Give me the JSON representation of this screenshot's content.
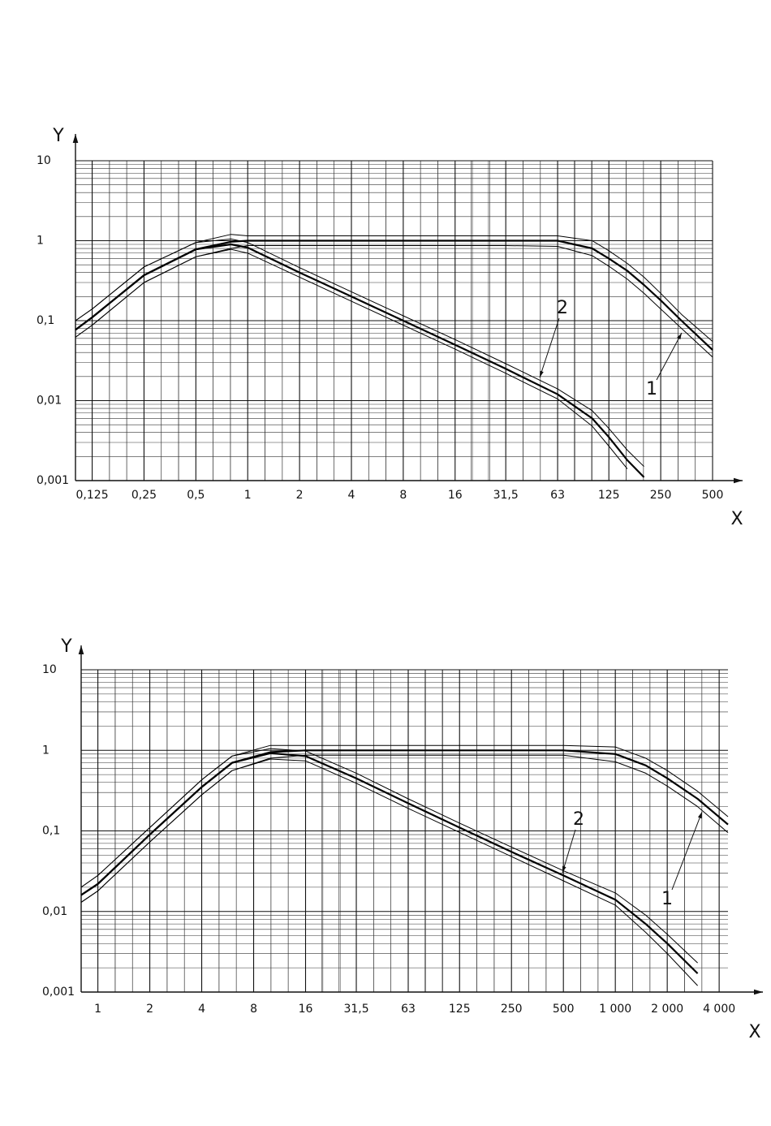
{
  "chart_data": [
    {
      "type": "line",
      "xscale": "log",
      "yscale": "log",
      "grid": true,
      "color": "#000000",
      "xlabel": "X",
      "ylabel": "Y",
      "xlim": [
        0.1,
        500
      ],
      "ylim": [
        0.001,
        10
      ],
      "xticks": [
        {
          "value": 0.125,
          "label": "0,125"
        },
        {
          "value": 0.25,
          "label": "0,25"
        },
        {
          "value": 0.5,
          "label": "0,5"
        },
        1,
        2,
        4,
        8,
        16,
        {
          "value": 31.5,
          "label": "31,5"
        },
        63,
        125,
        250,
        500
      ],
      "yticks": [
        {
          "value": 0.001,
          "label": "0,001"
        },
        {
          "value": 0.01,
          "label": "0,01"
        },
        {
          "value": 0.1,
          "label": "0,1"
        },
        1,
        10
      ],
      "x": [
        0.1,
        0.125,
        0.25,
        0.5,
        0.8,
        1,
        2,
        4,
        8,
        16,
        31.5,
        63,
        100,
        125,
        160,
        200,
        250,
        330,
        500
      ],
      "series": [
        {
          "name": "1",
          "values": [
            0.077,
            0.11,
            0.37,
            0.78,
            0.97,
            1,
            1,
            1,
            1,
            1,
            1,
            1,
            0.8,
            0.6,
            0.42,
            0.28,
            0.18,
            0.1,
            0.043
          ],
          "upper": [
            0.1,
            0.14,
            0.47,
            0.95,
            1.2,
            1.15,
            1.15,
            1.15,
            1.15,
            1.15,
            1.15,
            1.15,
            1,
            0.75,
            0.52,
            0.35,
            0.22,
            0.12,
            0.055
          ],
          "lower": [
            0.062,
            0.088,
            0.3,
            0.63,
            0.8,
            0.87,
            0.87,
            0.87,
            0.87,
            0.87,
            0.87,
            0.85,
            0.65,
            0.48,
            0.33,
            0.22,
            0.14,
            0.08,
            0.035
          ]
        },
        {
          "name": "2",
          "values": [
            0.077,
            0.11,
            0.37,
            0.78,
            0.9,
            0.82,
            0.4,
            0.2,
            0.1,
            0.05,
            0.025,
            0.012,
            0.006,
            0.0035,
            0.0018,
            0.0011,
            null,
            null,
            null
          ],
          "upper": [
            0.1,
            0.14,
            0.47,
            0.95,
            1.05,
            0.95,
            0.46,
            0.23,
            0.115,
            0.058,
            0.029,
            0.014,
            0.0075,
            0.0045,
            0.0024,
            0.0015,
            null,
            null,
            null
          ],
          "lower": [
            0.062,
            0.088,
            0.3,
            0.63,
            0.78,
            0.7,
            0.35,
            0.175,
            0.088,
            0.044,
            0.022,
            0.0105,
            0.0048,
            0.0027,
            0.0014,
            null,
            null,
            null,
            null
          ]
        }
      ]
    },
    {
      "type": "line",
      "xscale": "log",
      "yscale": "log",
      "grid": true,
      "color": "#000000",
      "xlabel": "X",
      "ylabel": "Y",
      "xlim": [
        0.8,
        4500
      ],
      "ylim": [
        0.001,
        10
      ],
      "xticks": [
        1,
        2,
        4,
        8,
        16,
        {
          "value": 31.5,
          "label": "31,5"
        },
        63,
        125,
        250,
        500,
        {
          "value": 1000,
          "label": "1 000"
        },
        {
          "value": 2000,
          "label": "2 000"
        },
        {
          "value": 4000,
          "label": "4 000"
        }
      ],
      "yticks": [
        {
          "value": 0.001,
          "label": "0,001"
        },
        {
          "value": 0.01,
          "label": "0,01"
        },
        {
          "value": 0.1,
          "label": "0,1"
        },
        1,
        10
      ],
      "x": [
        0.8,
        1,
        2,
        4,
        6,
        10,
        16,
        31.5,
        63,
        125,
        250,
        500,
        1000,
        1500,
        2000,
        3000,
        4500
      ],
      "series": [
        {
          "name": "1",
          "values": [
            0.016,
            0.022,
            0.09,
            0.35,
            0.7,
            0.95,
            1,
            1,
            1,
            1,
            1,
            1,
            0.9,
            0.65,
            0.45,
            0.25,
            0.12
          ],
          "upper": [
            0.02,
            0.028,
            0.11,
            0.43,
            0.85,
            1.15,
            1.15,
            1.15,
            1.15,
            1.15,
            1.15,
            1.15,
            1.1,
            0.8,
            0.56,
            0.31,
            0.15
          ],
          "lower": [
            0.013,
            0.018,
            0.073,
            0.28,
            0.56,
            0.8,
            0.87,
            0.87,
            0.87,
            0.87,
            0.87,
            0.87,
            0.72,
            0.52,
            0.36,
            0.2,
            0.095
          ]
        },
        {
          "name": "2",
          "values": [
            0.016,
            0.022,
            0.09,
            0.35,
            0.7,
            0.92,
            0.85,
            0.45,
            0.22,
            0.11,
            0.055,
            0.028,
            0.014,
            0.007,
            0.004,
            0.0017,
            null
          ],
          "upper": [
            0.02,
            0.028,
            0.11,
            0.43,
            0.85,
            1.05,
            0.98,
            0.52,
            0.25,
            0.125,
            0.063,
            0.032,
            0.017,
            0.009,
            0.0052,
            0.0023,
            null
          ],
          "lower": [
            0.013,
            0.018,
            0.073,
            0.28,
            0.56,
            0.78,
            0.74,
            0.39,
            0.19,
            0.096,
            0.048,
            0.024,
            0.012,
            0.0055,
            0.003,
            0.0012,
            null
          ]
        }
      ]
    }
  ]
}
